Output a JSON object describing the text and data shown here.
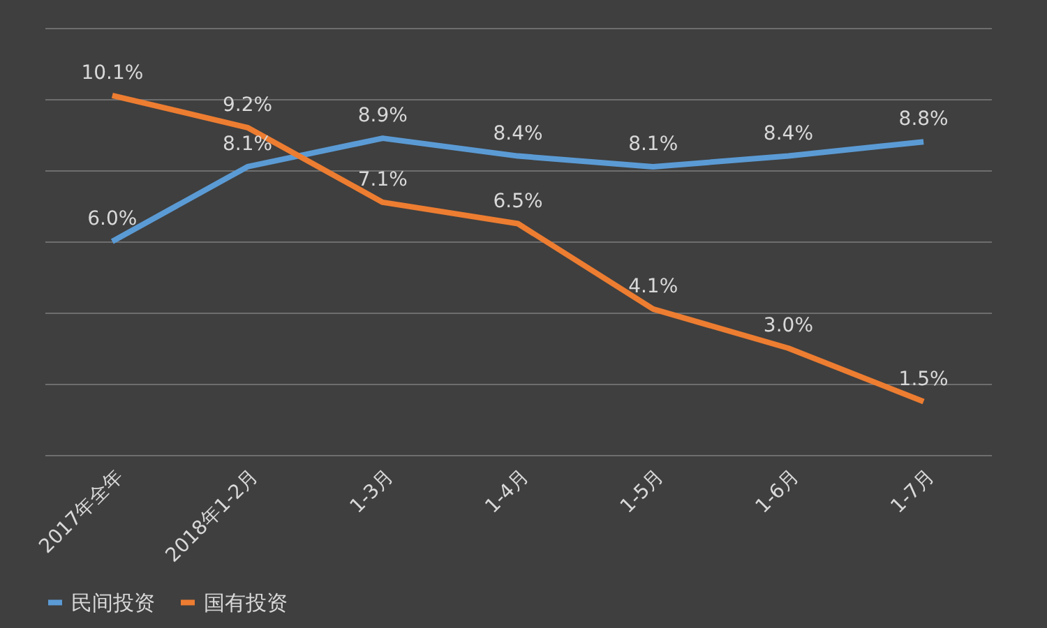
{
  "chart_data": {
    "type": "line",
    "categories": [
      "2017年全年",
      "2018年1-2月",
      "1-3月",
      "1-4月",
      "1-5月",
      "1-6月",
      "1-7月"
    ],
    "series": [
      {
        "name": "民间投资",
        "color": "#5b9bd5",
        "values": [
          6.0,
          8.1,
          8.9,
          8.4,
          8.1,
          8.4,
          8.8
        ],
        "value_labels": [
          "6.0%",
          "8.1%",
          "8.9%",
          "8.4%",
          "8.1%",
          "8.4%",
          "8.8%"
        ]
      },
      {
        "name": "国有投资",
        "color": "#ed7d31",
        "values": [
          10.1,
          9.2,
          7.1,
          6.5,
          4.1,
          3.0,
          1.5
        ],
        "value_labels": [
          "10.1%",
          "9.2%",
          "7.1%",
          "6.5%",
          "4.1%",
          "3.0%",
          "1.5%"
        ]
      }
    ],
    "ylim": [
      0,
      12
    ],
    "yticks": [
      {
        "value": 0,
        "label": null
      },
      {
        "value": 2,
        "label": null
      },
      {
        "value": 4,
        "label": null
      },
      {
        "value": 6,
        "label": null
      },
      {
        "value": 8,
        "label": null
      },
      {
        "value": 10,
        "label": null
      },
      {
        "value": 12,
        "label": null
      }
    ],
    "grid": "y",
    "legend": "bottom",
    "tick_labels": "x",
    "marker": "none",
    "line_style": "solid"
  }
}
